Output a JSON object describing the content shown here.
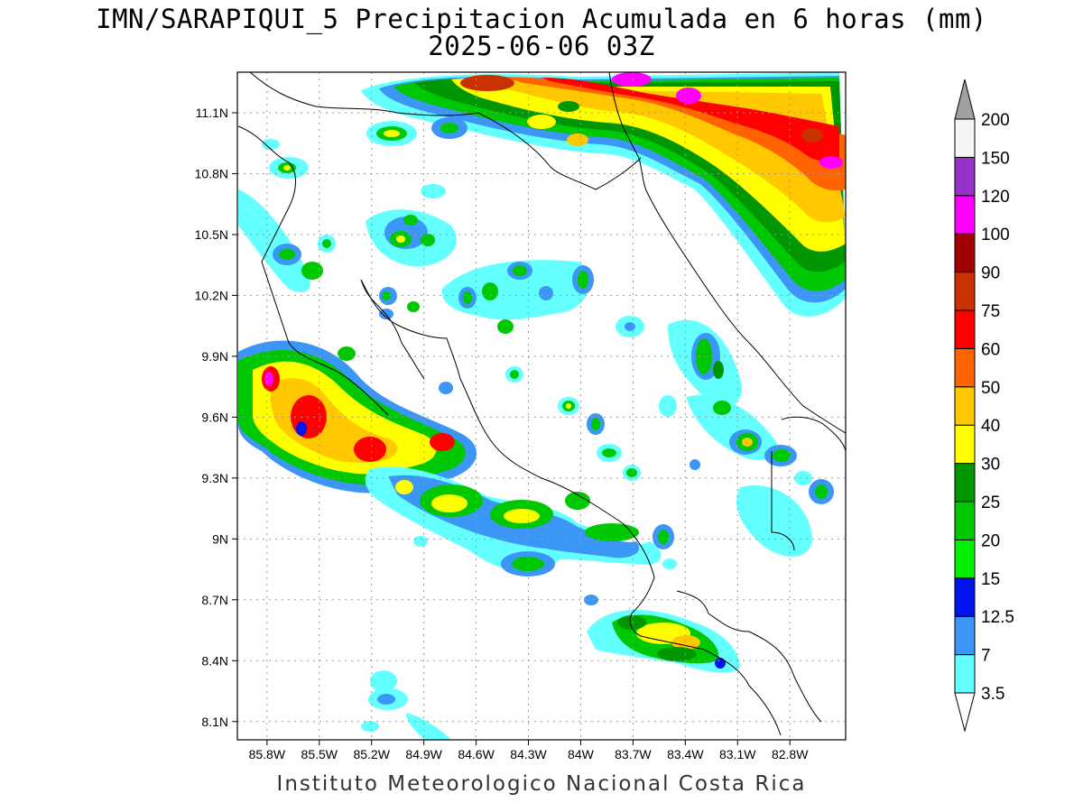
{
  "title": {
    "line1": "IMN/SARAPIQUI_5 Precipitacion Acumulada en 6 horas (mm)",
    "line2": "2025-06-06 03Z"
  },
  "footer": "Instituto Meteorologico Nacional Costa Rica",
  "map": {
    "lat_labels": [
      "11.1N",
      "10.8N",
      "10.5N",
      "10.2N",
      "9.9N",
      "9.6N",
      "9.3N",
      "9N",
      "8.7N",
      "8.4N",
      "8.1N"
    ],
    "lat_values": [
      11.1,
      10.8,
      10.5,
      10.2,
      9.9,
      9.6,
      9.3,
      9.0,
      8.7,
      8.4,
      8.1
    ],
    "lon_labels": [
      "85.8W",
      "85.5W",
      "85.2W",
      "84.9W",
      "84.6W",
      "84.3W",
      "84W",
      "83.7W",
      "83.4W",
      "83.1W",
      "82.8W"
    ],
    "lon_values": [
      -85.8,
      -85.5,
      -85.2,
      -84.9,
      -84.6,
      -84.3,
      -84.0,
      -83.7,
      -83.4,
      -83.1,
      -82.8
    ],
    "lon_range": [
      -85.97,
      -82.48
    ],
    "lat_range": [
      8.01,
      11.3
    ],
    "grid": "dotted"
  },
  "legend": {
    "levels": [
      "3.5",
      "7",
      "12.5",
      "15",
      "20",
      "25",
      "30",
      "40",
      "50",
      "60",
      "75",
      "90",
      "100",
      "120",
      "150",
      "200"
    ],
    "colors": [
      "#64ffff",
      "#3c96f5",
      "#0014f0",
      "#00f000",
      "#00c800",
      "#009600",
      "#ffff00",
      "#ffc800",
      "#ff6400",
      "#ff0000",
      "#c83200",
      "#a00000",
      "#ff00ff",
      "#9632c8",
      "#f5f5f5",
      "#a0a0a0"
    ]
  }
}
